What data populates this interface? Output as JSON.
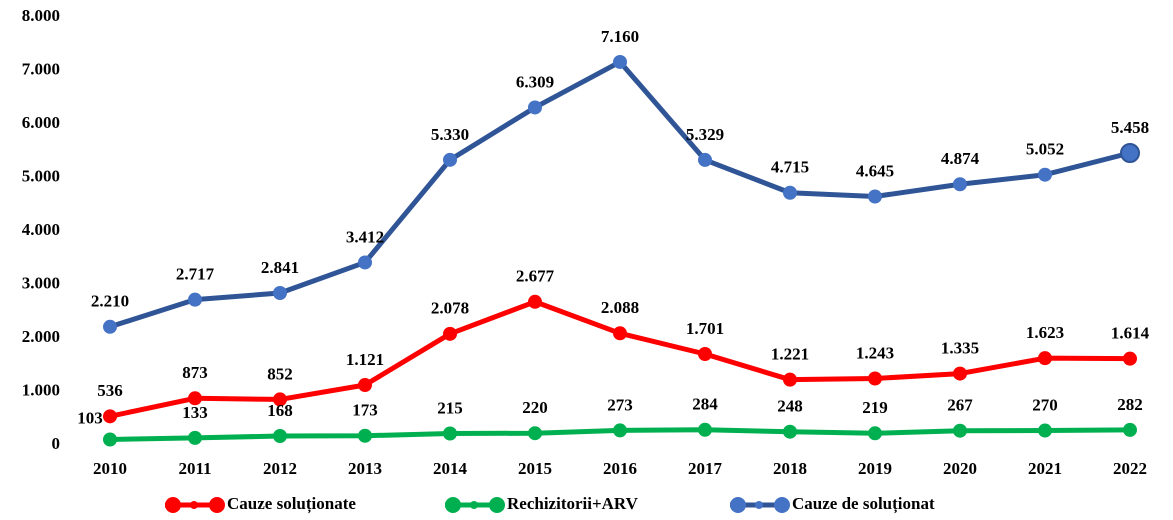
{
  "chart_data": {
    "type": "line",
    "categories": [
      "2010",
      "2011",
      "2012",
      "2013",
      "2014",
      "2015",
      "2016",
      "2017",
      "2018",
      "2019",
      "2020",
      "2021",
      "2022"
    ],
    "series": [
      {
        "name": "Cauze soluționate",
        "color": "#ff0000",
        "marker_color": "#ff0000",
        "values": [
          536,
          873,
          852,
          1121,
          2078,
          2677,
          2088,
          1701,
          1221,
          1243,
          1335,
          1623,
          1614
        ],
        "value_labels": [
          "536",
          "873",
          "852",
          "1.121",
          "2.078",
          "2.677",
          "2.088",
          "1.701",
          "1.221",
          "1.243",
          "1.335",
          "1.623",
          "1.614"
        ]
      },
      {
        "name": "Rechizitorii+ARV",
        "color": "#00b050",
        "marker_color": "#00b050",
        "values": [
          103,
          133,
          168,
          173,
          215,
          220,
          273,
          284,
          248,
          219,
          267,
          270,
          282
        ],
        "value_labels": [
          "103",
          "133",
          "168",
          "173",
          "215",
          "220",
          "273",
          "284",
          "248",
          "219",
          "267",
          "270",
          "282"
        ]
      },
      {
        "name": "Cauze de soluționat",
        "color": "#2f5597",
        "marker_color": "#4472c4",
        "values": [
          2210,
          2717,
          2841,
          3412,
          5330,
          6309,
          7160,
          5329,
          4715,
          4645,
          4874,
          5052,
          5458
        ],
        "value_labels": [
          "2.210",
          "2.717",
          "2.841",
          "3.412",
          "5.330",
          "6.309",
          "7.160",
          "5.329",
          "4.715",
          "4.645",
          "4.874",
          "5.052",
          "5.458"
        ]
      }
    ],
    "ylim": [
      0,
      8000
    ],
    "yticks": [
      0,
      {
        "value": 1000,
        "label": "1.000"
      },
      {
        "value": 2000,
        "label": "2.000"
      },
      {
        "value": 3000,
        "label": "3.000"
      },
      {
        "value": 4000,
        "label": "4.000"
      },
      {
        "value": 5000,
        "label": "5.000"
      },
      {
        "value": 6000,
        "label": "6.000"
      },
      {
        "value": 7000,
        "label": "7.000"
      },
      {
        "value": 8000,
        "label": "8.000"
      }
    ],
    "grid": false,
    "legend": "bottom"
  }
}
